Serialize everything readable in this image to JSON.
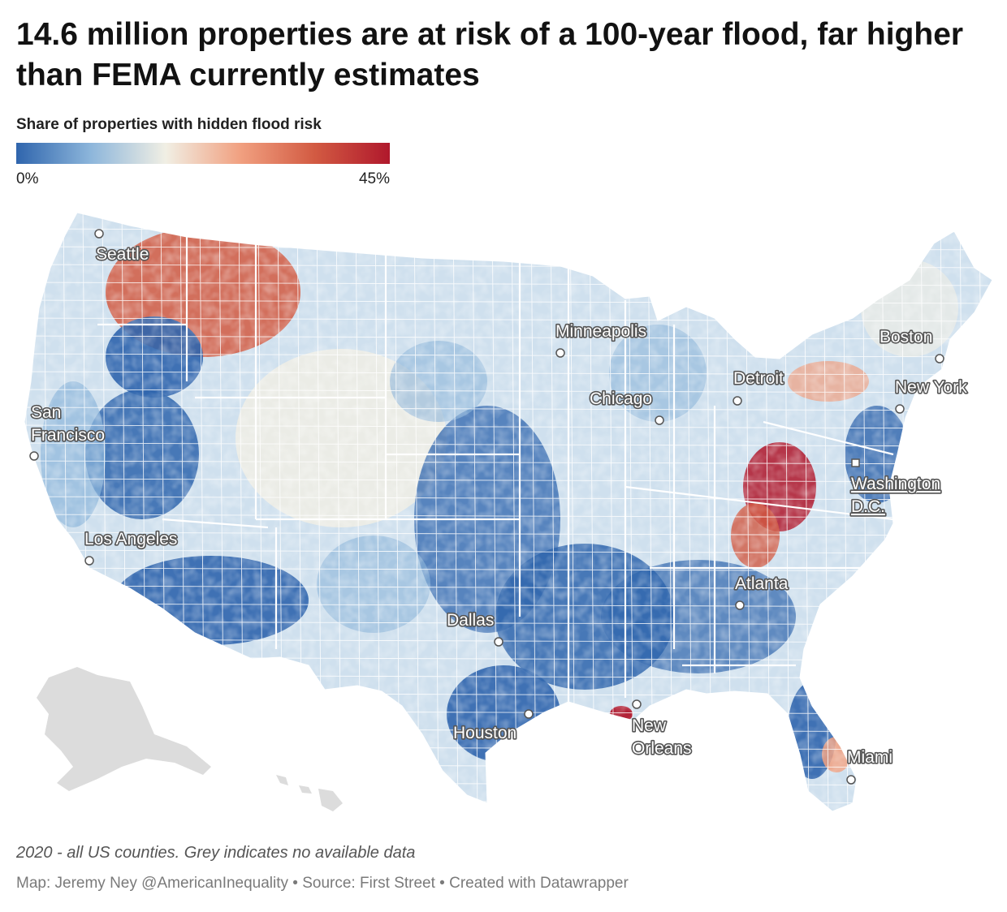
{
  "header": {
    "title": "14.6 million properties are at risk of a 100-year flood, far higher than FEMA currently estimates"
  },
  "legend": {
    "title": "Share of properties with hidden flood risk",
    "min_label": "0%",
    "max_label": "45%",
    "min_value": 0,
    "max_value": 45,
    "color_stops": [
      "#2f65ad",
      "#8db6db",
      "#f1efe4",
      "#f1a080",
      "#d25a42",
      "#b0182c"
    ]
  },
  "map": {
    "no_data_color": "#d9d9d9",
    "cities": {
      "seattle": "Seattle",
      "san_francisco_line1": "San",
      "san_francisco_line2": "Francisco",
      "los_angeles": "Los Angeles",
      "minneapolis": "Minneapolis",
      "chicago": "Chicago",
      "detroit": "Detroit",
      "boston": "Boston",
      "new_york": "New York",
      "washington_line1": "Washington",
      "washington_line2": "D.C.",
      "atlanta": "Atlanta",
      "dallas": "Dallas",
      "houston": "Houston",
      "new_orleans_line1": "New",
      "new_orleans_line2": "Orleans",
      "miami": "Miami"
    }
  },
  "footer": {
    "notes": "2020 - all US counties. Grey indicates no available data",
    "byline": "Map: Jeremy Ney @AmericanInequality • Source: First Street • Created with Datawrapper"
  }
}
